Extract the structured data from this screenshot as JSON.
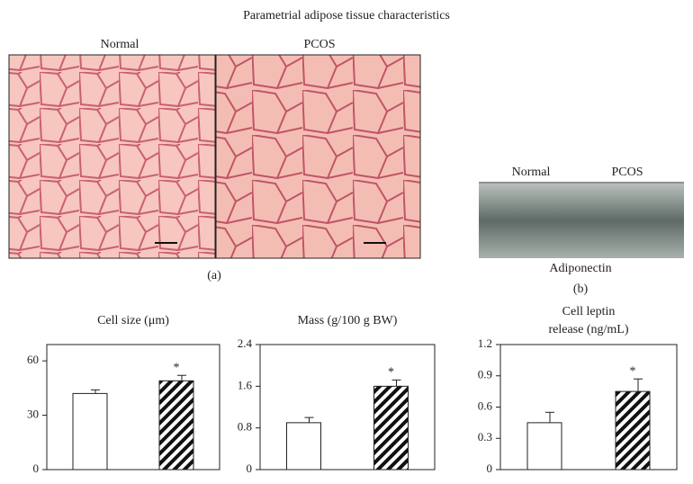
{
  "title": "Parametrial adipose tissue characteristics",
  "panel_a": {
    "labels": [
      "Normal",
      "PCOS"
    ],
    "caption": "(a)"
  },
  "panel_b": {
    "labels": [
      "Normal",
      "PCOS"
    ],
    "protein": "Adiponectin",
    "caption": "(b)"
  },
  "chart_data": [
    {
      "type": "bar",
      "title": [
        "Cell size (μm)"
      ],
      "categories": [
        null,
        null
      ],
      "values": [
        42,
        49
      ],
      "errors": [
        2,
        3
      ],
      "significance": [
        null,
        "*"
      ],
      "fills": [
        "#ffffff",
        "hatch"
      ],
      "ylim": [
        0,
        69
      ],
      "yticks": [
        0,
        30,
        60
      ]
    },
    {
      "type": "bar",
      "title": [
        "Mass (g/100 g BW)"
      ],
      "categories": [
        null,
        null
      ],
      "values": [
        0.9,
        1.6
      ],
      "errors": [
        0.1,
        0.12
      ],
      "significance": [
        null,
        "*"
      ],
      "fills": [
        "#ffffff",
        "hatch"
      ],
      "ylim": [
        0,
        2.4
      ],
      "yticks": [
        0,
        0.8,
        1.6,
        2.4
      ]
    },
    {
      "type": "bar",
      "title": [
        "Cell leptin",
        "release (ng/mL)"
      ],
      "categories": [
        null,
        null
      ],
      "values": [
        0.45,
        0.75
      ],
      "errors": [
        0.1,
        0.12
      ],
      "significance": [
        null,
        "*"
      ],
      "fills": [
        "#ffffff",
        "hatch"
      ],
      "ylim": [
        0,
        1.2
      ],
      "yticks": [
        0,
        0.3,
        0.6,
        0.9,
        1.2
      ]
    }
  ]
}
